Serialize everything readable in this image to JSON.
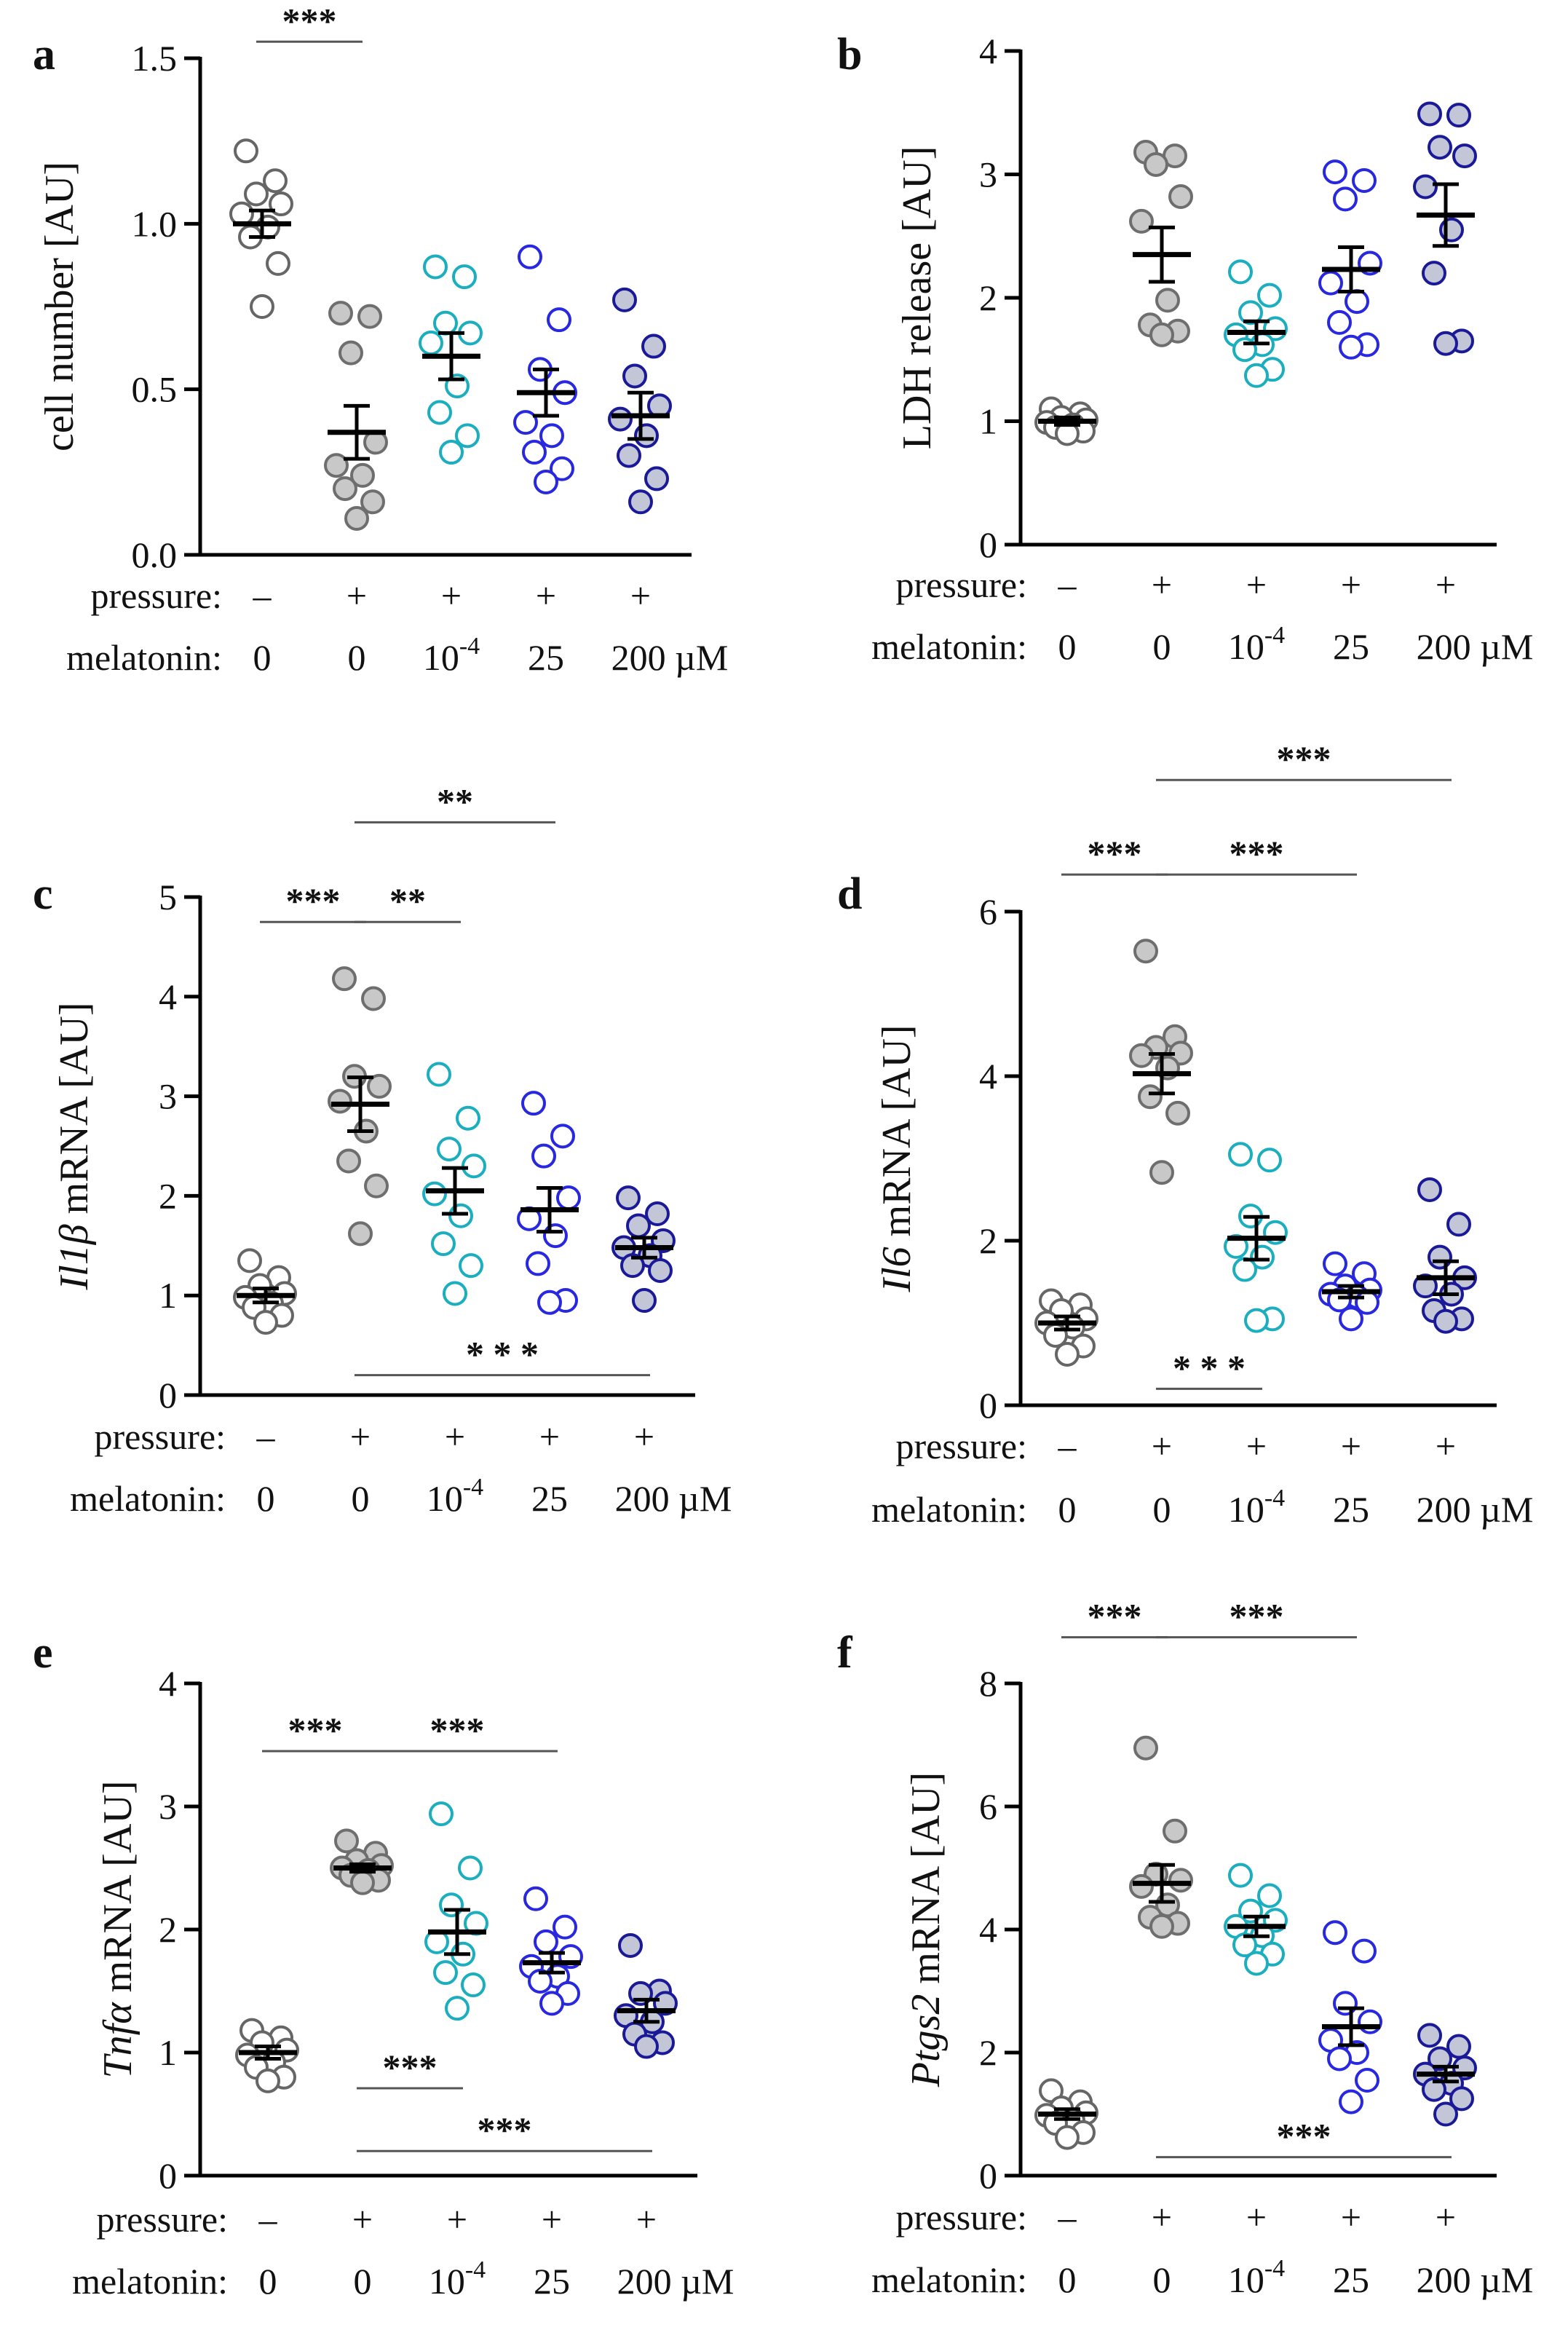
{
  "colors": {
    "control_fill": "#ffffff",
    "control_stroke": "#666666",
    "pressure_fill": "#c8c8c8",
    "pressure_stroke": "#6e6e6e",
    "mel_low_stroke": "#1aaebf",
    "mel_mid_stroke": "#2828e0",
    "mel_high_stroke": "#1a1a99",
    "mel_high_fill": "#c3c6d6",
    "axis": "#000000"
  },
  "row_labels": {
    "pressure": "pressure:",
    "melatonin": "melatonin:"
  },
  "chart_data": [
    {
      "type": "scatter",
      "panel": "a",
      "ylabel_parts": [
        {
          "t": "cell number [AU]",
          "i": false
        }
      ],
      "ylim": [
        0,
        1.5
      ],
      "yticks": [
        0,
        0.5,
        1.0,
        1.5
      ],
      "ytick_labels": [
        "0.0",
        "0.5",
        "1.0",
        "1.5"
      ],
      "pressure_labels": [
        "–",
        "+",
        "+",
        "+",
        "+"
      ],
      "melatonin_labels": [
        "0",
        "0",
        "10^-4",
        "25",
        "200 µM"
      ],
      "groups": [
        {
          "name": "control",
          "style": "control",
          "mean": 1.0,
          "sem": 0.04,
          "points": [
            1.22,
            1.13,
            1.09,
            1.06,
            1.03,
            0.99,
            0.96,
            0.88,
            0.75
          ]
        },
        {
          "name": "pressure",
          "style": "pressure",
          "mean": 0.37,
          "sem": 0.08,
          "points": [
            0.73,
            0.72,
            0.61,
            0.34,
            0.27,
            0.24,
            0.2,
            0.16,
            0.11
          ]
        },
        {
          "name": "melatonin 10^-4",
          "style": "mel_low",
          "mean": 0.6,
          "sem": 0.07,
          "points": [
            0.87,
            0.84,
            0.7,
            0.67,
            0.64,
            0.51,
            0.43,
            0.36,
            0.31
          ]
        },
        {
          "name": "melatonin 25",
          "style": "mel_mid",
          "mean": 0.49,
          "sem": 0.07,
          "points": [
            0.9,
            0.71,
            0.56,
            0.49,
            0.4,
            0.36,
            0.31,
            0.26,
            0.22
          ]
        },
        {
          "name": "melatonin 200",
          "style": "mel_high",
          "mean": 0.42,
          "sem": 0.07,
          "points": [
            0.77,
            0.63,
            0.54,
            0.45,
            0.41,
            0.36,
            0.3,
            0.23,
            0.16
          ]
        }
      ],
      "significance": [
        {
          "label": "***",
          "from": 0,
          "to": 1,
          "y": 1.55,
          "label_pos": "above"
        }
      ]
    },
    {
      "type": "scatter",
      "panel": "b",
      "ylabel_parts": [
        {
          "t": "LDH release [AU]",
          "i": false
        }
      ],
      "ylim": [
        0,
        4
      ],
      "yticks": [
        0,
        1,
        2,
        3,
        4
      ],
      "ytick_labels": [
        "0",
        "1",
        "2",
        "3",
        "4"
      ],
      "pressure_labels": [
        "–",
        "+",
        "+",
        "+",
        "+"
      ],
      "melatonin_labels": [
        "0",
        "0",
        "10^-4",
        "25",
        "200 µM"
      ],
      "groups": [
        {
          "name": "control",
          "style": "control",
          "mean": 1.0,
          "sem": 0.03,
          "points": [
            1.1,
            1.06,
            1.03,
            1.01,
            0.99,
            0.97,
            0.95,
            0.92,
            0.9
          ]
        },
        {
          "name": "pressure",
          "style": "pressure",
          "mean": 2.35,
          "sem": 0.22,
          "points": [
            3.18,
            3.15,
            3.08,
            2.82,
            2.62,
            1.98,
            1.78,
            1.73,
            1.7
          ]
        },
        {
          "name": "melatonin 10^-4",
          "style": "mel_low",
          "mean": 1.72,
          "sem": 0.09,
          "points": [
            2.21,
            2.02,
            1.88,
            1.75,
            1.7,
            1.62,
            1.58,
            1.42,
            1.37
          ]
        },
        {
          "name": "melatonin 25",
          "style": "mel_mid",
          "mean": 2.23,
          "sem": 0.18,
          "points": [
            3.02,
            2.95,
            2.8,
            2.28,
            2.12,
            1.97,
            1.8,
            1.62,
            1.6
          ]
        },
        {
          "name": "melatonin 200",
          "style": "mel_high",
          "mean": 2.67,
          "sem": 0.25,
          "points": [
            3.49,
            3.48,
            3.22,
            3.15,
            2.9,
            2.55,
            2.2,
            1.65,
            1.63
          ]
        }
      ],
      "significance": []
    },
    {
      "type": "scatter",
      "panel": "c",
      "ylabel_parts": [
        {
          "t": "Il1β",
          "i": true
        },
        {
          "t": " mRNA [AU]",
          "i": false
        }
      ],
      "ylim": [
        0,
        5
      ],
      "yticks": [
        0,
        1,
        2,
        3,
        4,
        5
      ],
      "ytick_labels": [
        "0",
        "1",
        "2",
        "3",
        "4",
        "5"
      ],
      "pressure_labels": [
        "–",
        "+",
        "+",
        "+",
        "+"
      ],
      "melatonin_labels": [
        "0",
        "0",
        "10^-4",
        "25",
        "200 µM"
      ],
      "groups": [
        {
          "name": "control",
          "style": "control",
          "mean": 1.0,
          "sem": 0.07,
          "points": [
            1.35,
            1.18,
            1.1,
            1.02,
            0.98,
            0.92,
            0.88,
            0.8,
            0.73
          ]
        },
        {
          "name": "pressure",
          "style": "pressure",
          "mean": 2.92,
          "sem": 0.27,
          "points": [
            4.18,
            3.98,
            3.2,
            3.1,
            2.95,
            2.65,
            2.35,
            2.1,
            1.62
          ]
        },
        {
          "name": "melatonin 10^-4",
          "style": "mel_low",
          "mean": 2.05,
          "sem": 0.23,
          "points": [
            3.22,
            2.78,
            2.47,
            2.3,
            2.02,
            1.8,
            1.52,
            1.3,
            1.02
          ]
        },
        {
          "name": "melatonin 25",
          "style": "mel_mid",
          "mean": 1.86,
          "sem": 0.22,
          "points": [
            2.93,
            2.6,
            2.4,
            1.98,
            1.77,
            1.6,
            1.32,
            0.95,
            0.93
          ]
        },
        {
          "name": "melatonin 200",
          "style": "mel_high",
          "mean": 1.48,
          "sem": 0.1,
          "points": [
            1.98,
            1.82,
            1.7,
            1.55,
            1.48,
            1.4,
            1.3,
            1.25,
            0.95
          ]
        }
      ],
      "significance": [
        {
          "label": "***",
          "from": 0,
          "to": 1,
          "y": 4.75,
          "label_pos": "above"
        },
        {
          "label": "**",
          "from": 1,
          "to": 2,
          "y": 4.75,
          "label_pos": "above"
        },
        {
          "label": "**",
          "from": 1,
          "to": 3,
          "y": 5.75,
          "label_pos": "above"
        },
        {
          "label": "* * *",
          "from": 1,
          "to": 4,
          "y": 0.2,
          "label_pos": "above"
        }
      ]
    },
    {
      "type": "scatter",
      "panel": "d",
      "ylabel_parts": [
        {
          "t": "Il6",
          "i": true
        },
        {
          "t": " mRNA [AU]",
          "i": false
        }
      ],
      "ylim": [
        0,
        6
      ],
      "yticks": [
        0,
        2,
        4,
        6
      ],
      "ytick_labels": [
        "0",
        "2",
        "4",
        "6"
      ],
      "pressure_labels": [
        "–",
        "+",
        "+",
        "+",
        "+"
      ],
      "melatonin_labels": [
        "0",
        "0",
        "10^-4",
        "25",
        "200 µM"
      ],
      "groups": [
        {
          "name": "control",
          "style": "control",
          "mean": 1.0,
          "sem": 0.08,
          "points": [
            1.27,
            1.22,
            1.15,
            1.05,
            1.0,
            0.95,
            0.85,
            0.72,
            0.62
          ]
        },
        {
          "name": "pressure",
          "style": "pressure",
          "mean": 4.03,
          "sem": 0.24,
          "points": [
            5.52,
            4.48,
            4.35,
            4.28,
            4.25,
            4.1,
            3.75,
            3.55,
            2.83
          ]
        },
        {
          "name": "melatonin 10^-4",
          "style": "mel_low",
          "mean": 2.03,
          "sem": 0.26,
          "points": [
            3.05,
            2.98,
            2.3,
            2.1,
            1.93,
            1.8,
            1.65,
            1.05,
            1.03
          ]
        },
        {
          "name": "melatonin 25",
          "style": "mel_mid",
          "mean": 1.38,
          "sem": 0.07,
          "points": [
            1.72,
            1.6,
            1.45,
            1.4,
            1.35,
            1.32,
            1.28,
            1.25,
            1.05
          ]
        },
        {
          "name": "melatonin 200",
          "style": "mel_high",
          "mean": 1.55,
          "sem": 0.2,
          "points": [
            2.62,
            2.2,
            1.8,
            1.55,
            1.45,
            1.35,
            1.15,
            1.05,
            1.02
          ]
        }
      ],
      "significance": [
        {
          "label": "***",
          "from": 0,
          "to": 1,
          "y": 6.45,
          "label_pos": "above"
        },
        {
          "label": "***",
          "from": 1,
          "to": 3,
          "y": 6.45,
          "label_pos": "above"
        },
        {
          "label": "***",
          "from": 1,
          "to": 4,
          "y": 7.6,
          "label_pos": "above"
        },
        {
          "label": "* * *",
          "from": 1,
          "to": 2,
          "y": 0.2,
          "label_pos": "above"
        }
      ]
    },
    {
      "type": "scatter",
      "panel": "e",
      "ylabel_parts": [
        {
          "t": "Tnfα",
          "i": true
        },
        {
          "t": " mRNA [AU]",
          "i": false
        }
      ],
      "ylim": [
        0,
        4
      ],
      "yticks": [
        0,
        1,
        2,
        3,
        4
      ],
      "ytick_labels": [
        "0",
        "1",
        "2",
        "3",
        "4"
      ],
      "pressure_labels": [
        "–",
        "+",
        "+",
        "+",
        "+"
      ],
      "melatonin_labels": [
        "0",
        "0",
        "10^-4",
        "25",
        "200 µM"
      ],
      "groups": [
        {
          "name": "control",
          "style": "control",
          "mean": 1.0,
          "sem": 0.05,
          "points": [
            1.18,
            1.12,
            1.08,
            1.02,
            0.98,
            0.92,
            0.88,
            0.8,
            0.77
          ]
        },
        {
          "name": "pressure",
          "style": "pressure",
          "mean": 2.5,
          "sem": 0.03,
          "points": [
            2.72,
            2.62,
            2.56,
            2.52,
            2.5,
            2.48,
            2.44,
            2.4,
            2.38
          ]
        },
        {
          "name": "melatonin 10^-4",
          "style": "mel_low",
          "mean": 1.98,
          "sem": 0.18,
          "points": [
            2.94,
            2.5,
            2.2,
            2.05,
            1.9,
            1.8,
            1.65,
            1.55,
            1.36
          ]
        },
        {
          "name": "melatonin 25",
          "style": "mel_mid",
          "mean": 1.73,
          "sem": 0.08,
          "points": [
            2.25,
            2.02,
            1.9,
            1.78,
            1.7,
            1.62,
            1.58,
            1.48,
            1.4
          ]
        },
        {
          "name": "melatonin 200",
          "style": "mel_high",
          "mean": 1.34,
          "sem": 0.09,
          "points": [
            1.87,
            1.5,
            1.48,
            1.4,
            1.3,
            1.25,
            1.15,
            1.08,
            1.05
          ]
        }
      ],
      "significance": [
        {
          "label": "***",
          "from": 0,
          "to": 1,
          "y": 3.45,
          "label_pos": "above"
        },
        {
          "label": "***",
          "from": 1,
          "to": 3,
          "y": 3.45,
          "label_pos": "above"
        },
        {
          "label": "***",
          "from": 1,
          "to": 2,
          "y": 0.71,
          "label_pos": "above"
        },
        {
          "label": "***",
          "from": 1,
          "to": 4,
          "y": 0.2,
          "label_pos": "above"
        }
      ]
    },
    {
      "type": "scatter",
      "panel": "f",
      "ylabel_parts": [
        {
          "t": "Ptgs2",
          "i": true
        },
        {
          "t": " mRNA [AU]",
          "i": false
        }
      ],
      "ylim": [
        0,
        8
      ],
      "yticks": [
        0,
        2,
        4,
        6,
        8
      ],
      "ytick_labels": [
        "0",
        "2",
        "4",
        "6",
        "8"
      ],
      "pressure_labels": [
        "–",
        "+",
        "+",
        "+",
        "+"
      ],
      "melatonin_labels": [
        "0",
        "0",
        "10^-4",
        "25",
        "200 µM"
      ],
      "groups": [
        {
          "name": "control",
          "style": "control",
          "mean": 1.0,
          "sem": 0.08,
          "points": [
            1.38,
            1.2,
            1.1,
            1.02,
            0.98,
            0.9,
            0.85,
            0.7,
            0.62
          ]
        },
        {
          "name": "pressure",
          "style": "pressure",
          "mean": 4.75,
          "sem": 0.3,
          "points": [
            6.95,
            5.6,
            4.9,
            4.8,
            4.7,
            4.4,
            4.2,
            4.1,
            4.05
          ]
        },
        {
          "name": "melatonin 10^-4",
          "style": "mel_low",
          "mean": 4.05,
          "sem": 0.16,
          "points": [
            4.88,
            4.55,
            4.3,
            4.15,
            4.05,
            3.9,
            3.75,
            3.6,
            3.45
          ]
        },
        {
          "name": "melatonin 25",
          "style": "mel_mid",
          "mean": 2.42,
          "sem": 0.3,
          "points": [
            3.95,
            3.65,
            2.8,
            2.5,
            2.2,
            2.0,
            1.9,
            1.55,
            1.2
          ]
        },
        {
          "name": "melatonin 200",
          "style": "mel_high",
          "mean": 1.65,
          "sem": 0.12,
          "points": [
            2.28,
            2.1,
            1.9,
            1.75,
            1.65,
            1.5,
            1.4,
            1.25,
            1.0
          ]
        }
      ],
      "significance": [
        {
          "label": "***",
          "from": 0,
          "to": 1,
          "y": 8.75,
          "label_pos": "above"
        },
        {
          "label": "***",
          "from": 1,
          "to": 3,
          "y": 8.75,
          "label_pos": "above"
        },
        {
          "label": "***",
          "from": 1,
          "to": 4,
          "y": 0.3,
          "label_pos": "above"
        }
      ]
    }
  ]
}
